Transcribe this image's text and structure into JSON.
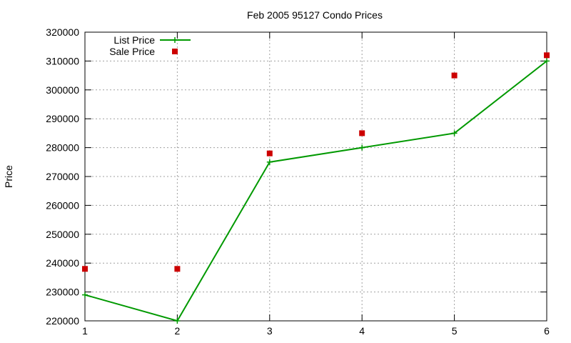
{
  "chart_data": {
    "type": "line",
    "title": "Feb 2005 95127 Condo Prices",
    "xlabel": "",
    "ylabel": "Price",
    "x": [
      1,
      2,
      3,
      4,
      5,
      6
    ],
    "xlim": [
      1,
      6
    ],
    "ylim": [
      220000,
      320000
    ],
    "xticks": [
      1,
      2,
      3,
      4,
      5,
      6
    ],
    "yticks": [
      220000,
      230000,
      240000,
      250000,
      260000,
      270000,
      280000,
      290000,
      300000,
      310000,
      320000
    ],
    "grid": true,
    "legend_position": "top-left",
    "series": [
      {
        "name": "List Price",
        "style": "linespoints",
        "marker": "plus",
        "color": "#009900",
        "values": [
          229000,
          220000,
          275000,
          280000,
          285000,
          310000
        ]
      },
      {
        "name": "Sale Price",
        "style": "points",
        "marker": "square",
        "color": "#cc0000",
        "values": [
          238000,
          238000,
          278000,
          285000,
          305000,
          312000
        ]
      }
    ]
  }
}
